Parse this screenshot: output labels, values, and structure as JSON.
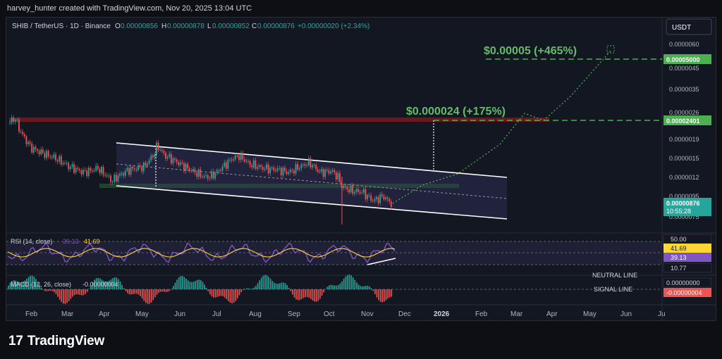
{
  "header": {
    "credit": "harvey_hunter created with TradingView.com, Nov 20, 2025 13:04 UTC"
  },
  "symbol": {
    "name": "SHIB / TetherUS · 1D · Binance",
    "o_label": "O",
    "o_value": "0.00000856",
    "h_label": "H",
    "h_value": "0.00000878",
    "l_label": "L",
    "l_value": "0.00000852",
    "c_label": "C",
    "c_value": "0.00000876",
    "change": "+0.00000020 (+2.34%)"
  },
  "currency_button": "USDT",
  "price_axis": {
    "ticks": [
      "0.0000060",
      "0.0000045",
      "0.0000035",
      "0.0000026",
      "0.0000019",
      "0.0000015",
      "0.0000012",
      "0.0000095",
      "0.0000075"
    ]
  },
  "price_tags": {
    "target_high": "0.00005000",
    "target_mid": "0.00002401",
    "current_price": "0.00000876",
    "countdown": "10:55:28"
  },
  "annotations": {
    "target_high": "$0.00005 (+465%)",
    "target_mid": "$0.000024 (+175%)"
  },
  "rsi": {
    "label": "RSI (14, close)",
    "value1": "39.13",
    "value2": "41.69",
    "axis_50": "50.00",
    "tag_ma": "41.69",
    "tag_rsi": "39.13",
    "axis_low": "10.77",
    "neutral_label": "NEUTRAL LINE"
  },
  "macd": {
    "label": "MACD (12, 26, close)",
    "value": "-0.00000004",
    "tag_zero": "0.00000000",
    "tag_value": "-0.00000004",
    "signal_label": "SIGNAL LINE"
  },
  "time_axis": [
    "Feb",
    "Mar",
    "Apr",
    "May",
    "Jun",
    "Jul",
    "Aug",
    "Sep",
    "Oct",
    "Nov",
    "Dec",
    "2026",
    "Feb",
    "Mar",
    "Apr",
    "May",
    "Jun",
    "Ju"
  ],
  "brand": {
    "logo_mark": "17",
    "name": "TradingView"
  },
  "colors": {
    "background": "#131722",
    "up": "#26a69a",
    "down": "#ef5350",
    "target_green": "#4caf50",
    "resistance": "#b71c1c",
    "rsi_line": "#7e57c2",
    "rsi_ma": "#fdd835"
  }
}
